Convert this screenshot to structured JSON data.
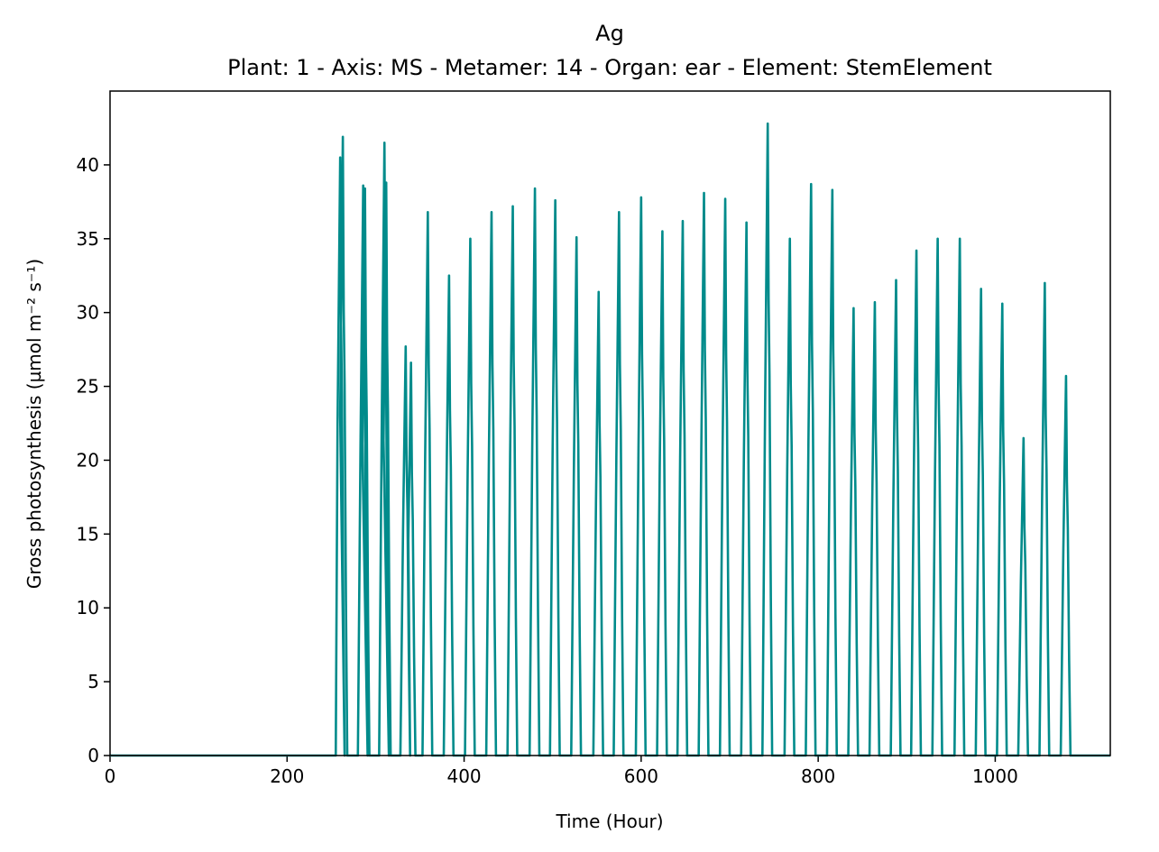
{
  "chart_data": {
    "type": "line",
    "title": "Ag",
    "subtitle": "Plant: 1 - Axis: MS - Metamer: 14 - Organ: ear - Element: StemElement",
    "xlabel": "Time (Hour)",
    "ylabel": "Gross photosynthesis (µmol m⁻² s⁻¹)",
    "xlim": [
      0,
      1130
    ],
    "ylim": [
      0,
      45
    ],
    "xticks": [
      0,
      200,
      400,
      600,
      800,
      1000
    ],
    "yticks": [
      0,
      5,
      10,
      15,
      20,
      25,
      30,
      35,
      40
    ],
    "grid": false,
    "series_color": "#008b8b",
    "series": [
      {
        "peaks": [
          {
            "t": 260,
            "v": 40.5
          },
          {
            "t": 263,
            "v": 41.9
          },
          {
            "t": 286,
            "v": 38.6
          },
          {
            "t": 288,
            "v": 38.4
          },
          {
            "t": 310,
            "v": 41.5
          },
          {
            "t": 312,
            "v": 38.8
          },
          {
            "t": 334,
            "v": 27.7
          },
          {
            "t": 340,
            "v": 26.6
          },
          {
            "t": 359,
            "v": 36.8
          },
          {
            "t": 383,
            "v": 32.5
          },
          {
            "t": 407,
            "v": 35.0
          },
          {
            "t": 431,
            "v": 36.8
          },
          {
            "t": 455,
            "v": 37.2
          },
          {
            "t": 480,
            "v": 38.4
          },
          {
            "t": 503,
            "v": 37.6
          },
          {
            "t": 527,
            "v": 35.1
          },
          {
            "t": 552,
            "v": 31.4
          },
          {
            "t": 575,
            "v": 36.8
          },
          {
            "t": 600,
            "v": 37.8
          },
          {
            "t": 624,
            "v": 35.5
          },
          {
            "t": 647,
            "v": 36.2
          },
          {
            "t": 671,
            "v": 38.1
          },
          {
            "t": 695,
            "v": 37.7
          },
          {
            "t": 719,
            "v": 36.1
          },
          {
            "t": 743,
            "v": 42.8
          },
          {
            "t": 768,
            "v": 35.0
          },
          {
            "t": 792,
            "v": 38.7
          },
          {
            "t": 816,
            "v": 38.3
          },
          {
            "t": 840,
            "v": 30.3
          },
          {
            "t": 864,
            "v": 30.7
          },
          {
            "t": 888,
            "v": 32.2
          },
          {
            "t": 911,
            "v": 34.2
          },
          {
            "t": 935,
            "v": 35.0
          },
          {
            "t": 960,
            "v": 35.0
          },
          {
            "t": 984,
            "v": 31.6
          },
          {
            "t": 1008,
            "v": 30.6
          },
          {
            "t": 1032,
            "v": 21.5
          },
          {
            "t": 1056,
            "v": 32.0
          },
          {
            "t": 1080,
            "v": 25.7
          }
        ],
        "series_start": 255,
        "series_end": 1090
      }
    ]
  }
}
